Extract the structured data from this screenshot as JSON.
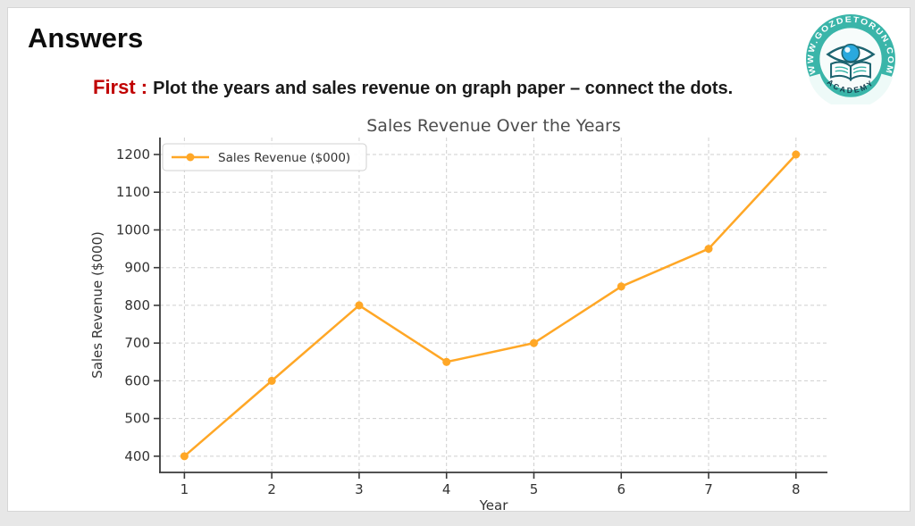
{
  "page": {
    "background_color": "#e7e7e7",
    "slide_background": "#ffffff"
  },
  "header": {
    "title": "Answers",
    "subtitle_prefix": "First :",
    "subtitle_text": "Plot the years and sales revenue on graph paper – connect the dots.",
    "accent_color": "#c00000"
  },
  "logo": {
    "ring_text": "WWW.GOZDETORUN.COM",
    "banner_text": "ACADEMY",
    "ring_color": "#3ab5a9",
    "dark_color": "#1d6470",
    "iris_color": "#2aa9de"
  },
  "chart_data": {
    "type": "line",
    "title": "Sales Revenue Over the Years",
    "xlabel": "Year",
    "ylabel": "Sales Revenue ($000)",
    "x": [
      1,
      2,
      3,
      4,
      5,
      6,
      7,
      8
    ],
    "series": [
      {
        "name": "Sales Revenue ($000)",
        "values": [
          400,
          600,
          800,
          650,
          700,
          850,
          950,
          1200
        ],
        "color": "#FFA726"
      }
    ],
    "xticks": [
      1,
      2,
      3,
      4,
      5,
      6,
      7,
      8
    ],
    "yticks": [
      400,
      500,
      600,
      700,
      800,
      900,
      1000,
      1100,
      1200
    ],
    "xlim": [
      0.72,
      8.36
    ],
    "ylim": [
      357,
      1245
    ],
    "grid": true,
    "legend_position": "upper-left",
    "grid_color": "#cfcfcf",
    "spine_color": "#3a3a3a",
    "text_color": "#333333",
    "title_color": "#4d4d4d",
    "legend_border": "#d0d0d0"
  }
}
